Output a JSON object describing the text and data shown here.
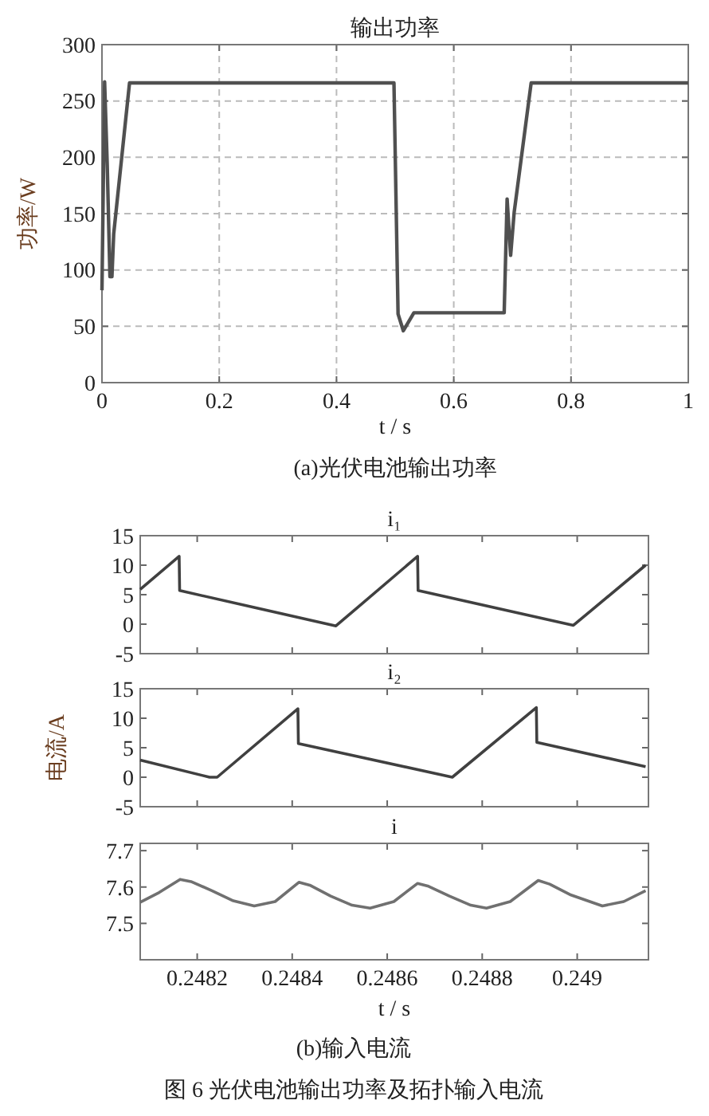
{
  "chart_data": [
    {
      "type": "line",
      "title": "输出功率",
      "xlabel": "t / s",
      "ylabel": "功率/W",
      "annotations": [
        "(a)光伏电池输出功率"
      ],
      "grid": true,
      "xlim": [
        0,
        1
      ],
      "xticks": [
        0,
        0.2,
        0.4,
        0.6,
        0.8,
        1
      ],
      "ylim": [
        0,
        300
      ],
      "yticks": [
        0,
        50,
        100,
        150,
        200,
        250,
        300
      ],
      "series": [
        {
          "color": "#505050",
          "x": [
            0,
            0.0045,
            0.009,
            0.0136,
            0.017,
            0.02,
            0.047,
            0.498,
            0.505,
            0.514,
            0.532,
            0.686,
            0.691,
            0.697,
            0.703,
            0.732,
            1
          ],
          "values": [
            82,
            267,
            193,
            94,
            94,
            132,
            266,
            266,
            61,
            46,
            62,
            62,
            163,
            113,
            151,
            266,
            266
          ]
        }
      ]
    },
    {
      "type": "line",
      "title": "i₁",
      "tick_labels": "y",
      "xlim": [
        0.24808,
        0.24915
      ],
      "xticks": [
        0.2482,
        0.2484,
        0.2486,
        0.2488,
        0.249
      ],
      "ylim": [
        -5,
        15
      ],
      "yticks": [
        -5,
        0,
        5,
        10,
        15
      ],
      "series": [
        {
          "color": "#404040",
          "x": [
            0.24808,
            0.248162,
            0.248163,
            0.248492,
            0.248664,
            0.248665,
            0.248992,
            0.249144
          ],
          "values": [
            5.9,
            11.5,
            5.7,
            -0.3,
            11.5,
            5.7,
            -0.2,
            10
          ]
        }
      ]
    },
    {
      "type": "line",
      "title": "i₂",
      "ylabel": "电流/A",
      "tick_labels": "y",
      "xlim": [
        0.24808,
        0.24915
      ],
      "xticks": [
        0.2482,
        0.2484,
        0.2486,
        0.2488,
        0.249
      ],
      "ylim": [
        -5,
        15
      ],
      "yticks": [
        -5,
        0,
        5,
        10,
        15
      ],
      "series": [
        {
          "color": "#404040",
          "x": [
            0.24808,
            0.248226,
            0.248242,
            0.248412,
            0.248413,
            0.248737,
            0.248914,
            0.248915,
            0.249144
          ],
          "values": [
            2.9,
            0,
            0,
            11.6,
            5.7,
            0,
            11.8,
            5.9,
            1.8
          ]
        }
      ]
    },
    {
      "type": "line",
      "title": "i",
      "xlabel": "t / s",
      "annotations": [
        "(b)输入电流",
        "图 6  光伏电池输出功率及拓扑输入电流"
      ],
      "xlim": [
        0.24808,
        0.24915
      ],
      "xticks": [
        0.2482,
        0.2484,
        0.2486,
        0.2488,
        0.249
      ],
      "ylim": [
        7.4,
        7.72
      ],
      "yticks": [
        7.5,
        7.6,
        7.7
      ],
      "series": [
        {
          "color": "#707070",
          "x": [
            0.24808,
            0.24812,
            0.248164,
            0.248187,
            0.248231,
            0.248276,
            0.24832,
            0.248364,
            0.248414,
            0.248437,
            0.248481,
            0.248526,
            0.248564,
            0.248614,
            0.248664,
            0.248687,
            0.248731,
            0.248776,
            0.248809,
            0.248859,
            0.248918,
            0.248942,
            0.248987,
            0.249053,
            0.249098,
            0.249144
          ],
          "values": [
            7.558,
            7.585,
            7.621,
            7.615,
            7.59,
            7.562,
            7.548,
            7.56,
            7.613,
            7.605,
            7.575,
            7.55,
            7.542,
            7.56,
            7.61,
            7.602,
            7.575,
            7.55,
            7.542,
            7.56,
            7.618,
            7.608,
            7.578,
            7.548,
            7.56,
            7.59
          ]
        }
      ]
    }
  ]
}
